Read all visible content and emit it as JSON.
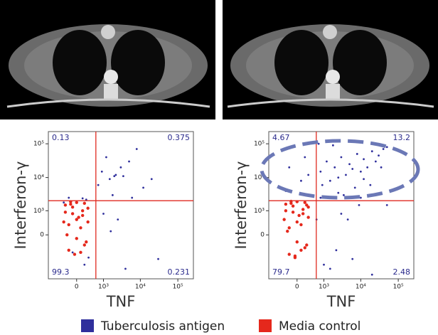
{
  "chart_data": [
    {
      "type": "scatter",
      "x_label": "TNF",
      "y_label": "Interferon-γ",
      "xscale": "biexponential",
      "yscale": "biexponential",
      "xlim": [
        -1100,
        260000
      ],
      "ylim": [
        -4000,
        230000
      ],
      "xticks": [
        0,
        {
          "value": 1000,
          "label": "10³"
        },
        {
          "value": 10000,
          "label": "10⁴"
        },
        {
          "value": 100000,
          "label": "10⁵"
        }
      ],
      "yticks": [
        0,
        {
          "value": 1000,
          "label": "10³"
        },
        {
          "value": 10000,
          "label": "10⁴"
        },
        {
          "value": 100000,
          "label": "10⁵"
        }
      ],
      "quadrant_gate": {
        "x": 590,
        "y": 2040
      },
      "gate_color": "#e02a20",
      "annotations": [
        {
          "text": "0.13",
          "position": "top-left"
        },
        {
          "text": "0.375",
          "position": "top-right"
        },
        {
          "text": "99.3",
          "position": "bottom-left"
        },
        {
          "text": "0.231",
          "position": "bottom-right"
        }
      ],
      "series": [
        {
          "name": "Tuberculosis antigen",
          "color": "#2f2f9c",
          "x": [
            -350,
            250,
            -100,
            320,
            150,
            1500,
            2200,
            3000,
            1800,
            5000,
            8000,
            2500,
            12000,
            4000,
            1200,
            900,
            2000,
            30000,
            6000,
            1600,
            700,
            3500,
            -200,
            200,
            1000,
            20000
          ],
          "values": [
            1800,
            2200,
            -600,
            -900,
            2400,
            9000,
            12000,
            20000,
            3000,
            30000,
            70000,
            500,
            5000,
            -2000,
            40000,
            15000,
            11000,
            -1000,
            2500,
            100,
            6000,
            11000,
            2500,
            -1500,
            800,
            9000
          ]
        },
        {
          "name": "Media control",
          "color": "#e5281c",
          "x": [
            -300,
            -200,
            -100,
            0,
            100,
            200,
            300,
            -250,
            -150,
            -50,
            50,
            150,
            250,
            -350,
            -200,
            0,
            200,
            -100,
            100,
            -300,
            300,
            0,
            -150,
            150
          ],
          "values": [
            1500,
            -500,
            800,
            1800,
            200,
            -300,
            1200,
            0,
            1600,
            -700,
            600,
            1000,
            -200,
            400,
            300,
            -100,
            1700,
            1300,
            -600,
            900,
            400,
            500,
            1900,
            700
          ]
        }
      ]
    },
    {
      "type": "scatter",
      "x_label": "TNF",
      "y_label": "Interferon-γ",
      "xscale": "biexponential",
      "yscale": "biexponential",
      "xlim": [
        -1100,
        260000
      ],
      "ylim": [
        -4000,
        230000
      ],
      "xticks": [
        0,
        {
          "value": 1000,
          "label": "10³"
        },
        {
          "value": 10000,
          "label": "10⁴"
        },
        {
          "value": 100000,
          "label": "10⁵"
        }
      ],
      "yticks": [
        0,
        {
          "value": 1000,
          "label": "10³"
        },
        {
          "value": 10000,
          "label": "10⁴"
        },
        {
          "value": 100000,
          "label": "10⁵"
        }
      ],
      "quadrant_gate": {
        "x": 590,
        "y": 2040
      },
      "gate_color": "#e02a20",
      "annotations": [
        {
          "text": "4.67",
          "position": "top-left"
        },
        {
          "text": "13.2",
          "position": "top-right"
        },
        {
          "text": "79.7",
          "position": "bottom-left"
        },
        {
          "text": "2.48",
          "position": "bottom-right"
        }
      ],
      "series": [
        {
          "color": "#2f2f9c",
          "x": [
            800,
            1200,
            2000,
            3000,
            5000,
            8000,
            12000,
            20000,
            30000,
            50000,
            1500,
            2500,
            4000,
            6000,
            10000,
            15000,
            25000,
            40000,
            3500,
            7000,
            9000,
            18000,
            2200,
            1000,
            600,
            -200,
            100,
            300,
            -300,
            200,
            1500,
            3000,
            6000,
            10000,
            20000,
            50000,
            2500,
            800,
            4500,
            900,
            12000,
            35000,
            700,
            1800
          ],
          "values": [
            15000,
            30000,
            20000,
            40000,
            25000,
            50000,
            35000,
            60000,
            45000,
            80000,
            8000,
            10000,
            12000,
            18000,
            15000,
            20000,
            30000,
            70000,
            3000,
            5000,
            1500,
            6000,
            -500,
            -1500,
            500,
            20000,
            8000,
            12000,
            4000,
            40000,
            -2000,
            800,
            -1000,
            2500,
            -3000,
            1500,
            3500,
            2500,
            500,
            6000,
            9000,
            20000,
            100000,
            90000
          ]
        },
        {
          "color": "#e5281c",
          "x": [
            -300,
            -200,
            -100,
            0,
            100,
            200,
            300,
            -250,
            -150,
            -50,
            50,
            150,
            250,
            -350,
            -200,
            0,
            200,
            -100,
            100,
            -300,
            300,
            0,
            -150,
            150,
            -50,
            250
          ],
          "values": [
            1600,
            -700,
            900,
            1900,
            300,
            -400,
            1300,
            100,
            1700,
            -800,
            700,
            1100,
            -300,
            500,
            200,
            -200,
            1800,
            1400,
            -500,
            1000,
            600,
            400,
            1950,
            800,
            -900,
            1500
          ]
        }
      ]
    }
  ]
}
